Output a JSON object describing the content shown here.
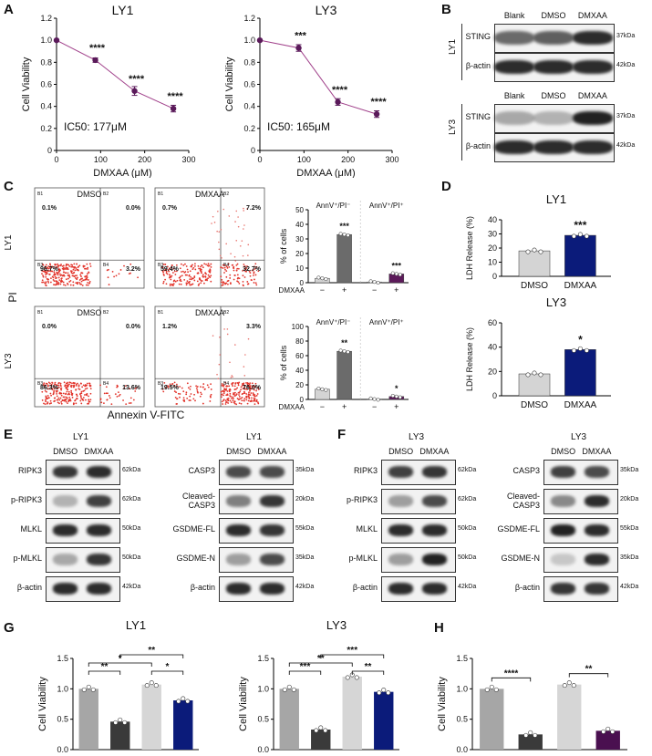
{
  "panels": {
    "A": "A",
    "B": "B",
    "C": "C",
    "D": "D",
    "E": "E",
    "F": "F",
    "G": "G",
    "H": "H"
  },
  "panel_a": {
    "charts": [
      {
        "title": "LY1",
        "ylabel": "Cell Viability",
        "xlabel": "DMXAA (μM)",
        "ic50": "IC50: 177μM",
        "x": [
          0,
          88,
          177,
          265
        ],
        "y": [
          1.0,
          0.82,
          0.54,
          0.38
        ],
        "err": [
          0,
          0.02,
          0.04,
          0.03
        ],
        "stars": [
          "",
          "****",
          "****",
          "****"
        ],
        "xticks": [
          "0",
          "100",
          "200",
          "300"
        ],
        "yticks": [
          "0",
          "0.2",
          "0.4",
          "0.6",
          "0.8",
          "1.0",
          "1.2"
        ]
      },
      {
        "title": "LY3",
        "ylabel": "Cell Viability",
        "xlabel": "DMXAA (μM)",
        "ic50": "IC50: 165μM",
        "x": [
          0,
          88,
          177,
          265
        ],
        "y": [
          1.0,
          0.93,
          0.44,
          0.33
        ],
        "err": [
          0,
          0.03,
          0.03,
          0.03
        ],
        "stars": [
          "",
          "***",
          "****",
          "****"
        ],
        "xticks": [
          "0",
          "100",
          "200",
          "300"
        ],
        "yticks": [
          "0",
          "0.2",
          "0.4",
          "0.6",
          "0.8",
          "1.0",
          "1.2"
        ]
      }
    ]
  },
  "panel_b": {
    "lanes": [
      "Blank",
      "DMSO",
      "DMXAA"
    ],
    "groups": [
      {
        "cell": "LY1",
        "bands": [
          {
            "label": "STING",
            "kda": "37kDa"
          },
          {
            "label": "β-actin",
            "kda": "42kDa"
          }
        ]
      },
      {
        "cell": "LY3",
        "bands": [
          {
            "label": "STING",
            "kda": "37kDa"
          },
          {
            "label": "β-actin",
            "kda": "42kDa"
          }
        ]
      }
    ]
  },
  "panel_c": {
    "ylabel": "PI",
    "xlabel": "Annexin V-FITC",
    "rows": [
      {
        "cell": "LY1",
        "plots": [
          {
            "title": "DMSO",
            "q1": "0.1%",
            "q2": "0.0%",
            "q3": "96.7%",
            "q4": "3.2%"
          },
          {
            "title": "DMXAA",
            "q1": "0.7%",
            "q2": "7.2%",
            "q3": "59.4%",
            "q4": "32.7%"
          }
        ]
      },
      {
        "cell": "LY3",
        "plots": [
          {
            "title": "DMSO",
            "q1": "0.0%",
            "q2": "0.0%",
            "q3": "86.3%",
            "q4": "13.6%"
          },
          {
            "title": "DMXAA",
            "q1": "1.2%",
            "q2": "3.3%",
            "q3": "19.5%",
            "q4": "76.0%"
          }
        ]
      }
    ],
    "quadrant_labels": [
      "B1",
      "B2",
      "B3",
      "B4"
    ],
    "bars_ly1": {
      "ylabel": "% of cells",
      "yticks": [
        "0",
        "10",
        "20",
        "30",
        "40",
        "50"
      ],
      "ymax": 50,
      "headers": [
        "AnnV⁺/PI⁻",
        "AnnV⁺/PI⁺"
      ],
      "treatment_label": "DMXAA",
      "signs": [
        "−",
        "+",
        "−",
        "+"
      ],
      "values": [
        3,
        33,
        0.5,
        6
      ],
      "colors": [
        "#d4d4d4",
        "#6b6b6b",
        "#e8e8e8",
        "#5c1a5a"
      ],
      "stars": [
        "",
        "***",
        "",
        "***"
      ]
    },
    "bars_ly3": {
      "ylabel": "% of cells",
      "yticks": [
        "0",
        "20",
        "40",
        "60",
        "80",
        "100"
      ],
      "ymax": 100,
      "headers": [
        "AnnV⁺/PI⁻",
        "AnnV⁺/PI⁺"
      ],
      "treatment_label": "DMXAA",
      "signs": [
        "−",
        "+",
        "−",
        "+"
      ],
      "values": [
        14,
        66,
        0.5,
        4
      ],
      "colors": [
        "#d4d4d4",
        "#6b6b6b",
        "#e8e8e8",
        "#5c1a5a"
      ],
      "stars": [
        "",
        "**",
        "",
        "*"
      ]
    }
  },
  "panel_d": {
    "charts": [
      {
        "title": "LY1",
        "ylabel": "LDH Release (%)",
        "yticks": [
          "0",
          "10",
          "20",
          "30",
          "40"
        ],
        "ymax": 40,
        "categories": [
          "DMSO",
          "DMXAA"
        ],
        "values": [
          18,
          29
        ],
        "colors": [
          "#d4d4d4",
          "#0b1b7a"
        ],
        "stars": [
          "",
          "***"
        ]
      },
      {
        "title": "LY3",
        "ylabel": "LDH Release (%)",
        "yticks": [
          "0",
          "20",
          "40",
          "60"
        ],
        "ymax": 60,
        "categories": [
          "DMSO",
          "DMXAA"
        ],
        "values": [
          18,
          38
        ],
        "colors": [
          "#d4d4d4",
          "#0b1b7a"
        ],
        "stars": [
          "",
          "*"
        ]
      }
    ]
  },
  "panel_e": {
    "left": {
      "cell": "LY1",
      "lanes": [
        "DMSO",
        "DMXAA"
      ],
      "bands": [
        {
          "label": "RIPK3",
          "kda": "62kDa"
        },
        {
          "label": "p-RIPK3",
          "kda": "62kDa"
        },
        {
          "label": "MLKL",
          "kda": "50kDa"
        },
        {
          "label": "p-MLKL",
          "kda": "50kDa"
        },
        {
          "label": "β-actin",
          "kda": "42kDa"
        }
      ]
    },
    "right": {
      "cell": "LY1",
      "lanes": [
        "DMSO",
        "DMXAA"
      ],
      "bands": [
        {
          "label": "CASP3",
          "kda": "35kDa"
        },
        {
          "label": "Cleaved-CASP3",
          "kda": "20kDa"
        },
        {
          "label": "GSDME-FL",
          "kda": "55kDa"
        },
        {
          "label": "GSDME-N",
          "kda": "35kDa"
        },
        {
          "label": "β-actin",
          "kda": "42kDa"
        }
      ]
    }
  },
  "panel_f": {
    "left": {
      "cell": "LY3",
      "lanes": [
        "DMSO",
        "DMXAA"
      ],
      "bands": [
        {
          "label": "RIPK3",
          "kda": "62kDa"
        },
        {
          "label": "p-RIPK3",
          "kda": "62kDa"
        },
        {
          "label": "MLKL",
          "kda": "50kDa"
        },
        {
          "label": "p-MLKL",
          "kda": "50kDa"
        },
        {
          "label": "β-actin",
          "kda": "42kDa"
        }
      ]
    },
    "right": {
      "cell": "LY3",
      "lanes": [
        "DMSO",
        "DMXAA"
      ],
      "bands": [
        {
          "label": "CASP3",
          "kda": "35kDa"
        },
        {
          "label": "Cleaved-CASP3",
          "kda": "20kDa"
        },
        {
          "label": "GSDME-FL",
          "kda": "55kDa"
        },
        {
          "label": "GSDME-N",
          "kda": "35kDa"
        },
        {
          "label": "β-actin",
          "kda": "42kDa"
        }
      ]
    }
  },
  "panel_g": {
    "charts": [
      {
        "title": "LY1",
        "ylabel": "Cell Viability",
        "yticks": [
          "0.0",
          "0.5",
          "1.0",
          "1.5"
        ],
        "ymax": 1.5,
        "values": [
          1.0,
          0.46,
          1.07,
          0.81
        ],
        "colors": [
          "#a6a6a6",
          "#3a3a3a",
          "#d6d6d6",
          "#0b1b7a"
        ],
        "brackets": [
          {
            "a": 0,
            "b": 1,
            "label": "**",
            "level": 0
          },
          {
            "a": 0,
            "b": 2,
            "label": "*",
            "level": 1
          },
          {
            "a": 2,
            "b": 3,
            "label": "*",
            "level": 0
          },
          {
            "a": 1,
            "b": 3,
            "label": "**",
            "level": 2
          }
        ]
      },
      {
        "title": "LY3",
        "ylabel": "Cell Viability",
        "yticks": [
          "0.0",
          "0.5",
          "1.0",
          "1.5"
        ],
        "ymax": 1.5,
        "values": [
          1.0,
          0.33,
          1.2,
          0.95
        ],
        "colors": [
          "#a6a6a6",
          "#3a3a3a",
          "#d6d6d6",
          "#0b1b7a"
        ],
        "brackets": [
          {
            "a": 0,
            "b": 1,
            "label": "***",
            "level": 0
          },
          {
            "a": 0,
            "b": 2,
            "label": "**",
            "level": 1
          },
          {
            "a": 2,
            "b": 3,
            "label": "**",
            "level": 0
          },
          {
            "a": 1,
            "b": 3,
            "label": "***",
            "level": 2
          }
        ]
      }
    ]
  },
  "panel_h": {
    "ylabel": "Cell Viability",
    "yticks": [
      "0.0",
      "0.5",
      "1.0",
      "1.5"
    ],
    "ymax": 1.5,
    "values": [
      1.0,
      0.25,
      1.07,
      0.31
    ],
    "colors": [
      "#a6a6a6",
      "#3a3a3a",
      "#d6d6d6",
      "#4a1050"
    ],
    "brackets": [
      {
        "a": 0,
        "b": 1,
        "label": "****"
      },
      {
        "a": 2,
        "b": 3,
        "label": "**"
      }
    ]
  },
  "chart_data": [
    {
      "type": "line",
      "title": "LY1",
      "xlabel": "DMXAA (μM)",
      "ylabel": "Cell Viability",
      "x": [
        0,
        88,
        177,
        265
      ],
      "y": [
        1.0,
        0.82,
        0.54,
        0.38
      ],
      "xlim": [
        0,
        300
      ],
      "ylim": [
        0,
        1.2
      ],
      "annotation": "IC50: 177μM"
    },
    {
      "type": "line",
      "title": "LY3",
      "xlabel": "DMXAA (μM)",
      "ylabel": "Cell Viability",
      "x": [
        0,
        88,
        177,
        265
      ],
      "y": [
        1.0,
        0.93,
        0.44,
        0.33
      ],
      "xlim": [
        0,
        300
      ],
      "ylim": [
        0,
        1.2
      ],
      "annotation": "IC50: 165μM"
    },
    {
      "type": "bar",
      "title": "LY1 LDH",
      "ylabel": "LDH Release (%)",
      "categories": [
        "DMSO",
        "DMXAA"
      ],
      "values": [
        18,
        29
      ],
      "ylim": [
        0,
        40
      ]
    },
    {
      "type": "bar",
      "title": "LY3 LDH",
      "ylabel": "LDH Release (%)",
      "categories": [
        "DMSO",
        "DMXAA"
      ],
      "values": [
        18,
        38
      ],
      "ylim": [
        0,
        60
      ]
    },
    {
      "type": "bar",
      "title": "LY1",
      "ylabel": "Cell Viability",
      "values": [
        1.0,
        0.46,
        1.07,
        0.81
      ],
      "ylim": [
        0,
        1.5
      ]
    },
    {
      "type": "bar",
      "title": "LY3",
      "ylabel": "Cell Viability",
      "values": [
        1.0,
        0.33,
        1.2,
        0.95
      ],
      "ylim": [
        0,
        1.5
      ]
    },
    {
      "type": "bar",
      "title": "",
      "ylabel": "Cell Viability",
      "values": [
        1.0,
        0.25,
        1.07,
        0.31
      ],
      "ylim": [
        0,
        1.5
      ]
    }
  ]
}
